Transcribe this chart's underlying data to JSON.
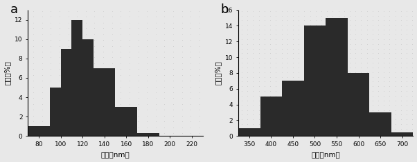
{
  "chart_a": {
    "label": "a",
    "bin_edges": [
      70,
      90,
      100,
      110,
      120,
      130,
      150,
      170,
      190,
      210,
      230
    ],
    "heights": [
      1,
      5,
      9,
      12,
      10,
      7,
      3,
      0.3,
      0,
      0
    ],
    "xlim": [
      70,
      230
    ],
    "xticks": [
      80,
      100,
      120,
      140,
      160,
      180,
      200,
      220
    ],
    "ylim": [
      0,
      13
    ],
    "yticks": [
      0,
      2,
      4,
      6,
      8,
      10,
      12
    ],
    "xlabel": "粒径（nm）",
    "ylabel": "强度（%）"
  },
  "chart_b": {
    "label": "b",
    "bin_edges": [
      325,
      375,
      425,
      475,
      525,
      575,
      625,
      675,
      725
    ],
    "heights": [
      1,
      5,
      7,
      14,
      15,
      8,
      3,
      0.5
    ],
    "xlim": [
      325,
      725
    ],
    "xticks": [
      350,
      400,
      450,
      500,
      550,
      600,
      650,
      700
    ],
    "ylim": [
      0,
      16
    ],
    "yticks": [
      0,
      2,
      4,
      6,
      8,
      10,
      12,
      14,
      16
    ],
    "xlabel": "粒径（nm）",
    "ylabel": "强度（%）"
  },
  "bar_color": "#2a2a2a",
  "bg_color": "#e8e8e8",
  "dot_color": "#c8c8c8",
  "font_size_label": 7.5,
  "font_size_tick": 6.5,
  "font_size_panel": 13
}
